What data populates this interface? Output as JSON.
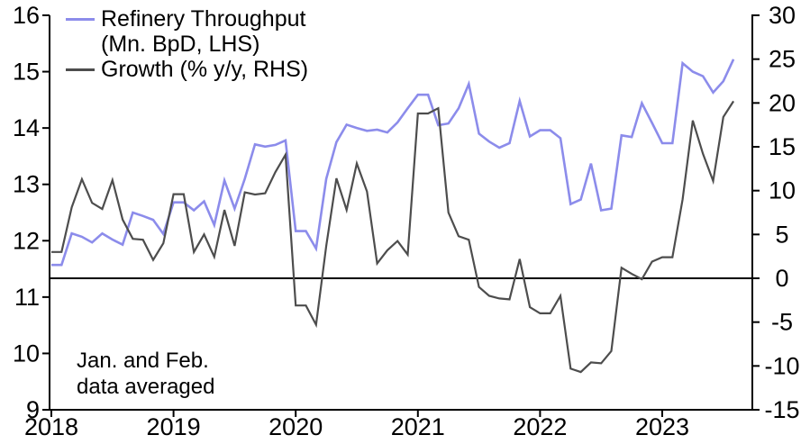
{
  "chart_data": {
    "type": "line",
    "title": "",
    "x_range": "Jan 2018 - Aug 2023, monthly; Jan and Feb of each year plotted as their average (flat segment)",
    "x_tick_labels": [
      "2018",
      "2019",
      "2020",
      "2021",
      "2022",
      "2023"
    ],
    "lhs_axis": {
      "label": "Refinery Throughput (Mn. BpD)",
      "min": 9,
      "max": 16,
      "ticks": [
        9,
        10,
        11,
        12,
        13,
        14,
        15,
        16
      ]
    },
    "rhs_axis": {
      "label": "Growth (% y/y)",
      "min": -15,
      "max": 30,
      "ticks": [
        -15,
        -10,
        -5,
        0,
        5,
        10,
        15,
        20,
        25,
        30
      ]
    },
    "zero_line_rhs": 0,
    "grid": "off",
    "legend_position": "top-left",
    "series": [
      {
        "name": "Refinery Throughput (Mn. BpD, LHS)",
        "axis": "lhs",
        "color": "#8c8ceb",
        "values": [
          11.57,
          11.57,
          12.13,
          12.07,
          11.97,
          12.13,
          12.02,
          11.93,
          12.5,
          12.44,
          12.37,
          12.12,
          12.68,
          12.68,
          12.54,
          12.7,
          12.28,
          13.07,
          12.57,
          13.1,
          13.71,
          13.67,
          13.7,
          13.78,
          12.17,
          12.17,
          11.86,
          13.1,
          13.75,
          14.06,
          14.0,
          13.95,
          13.97,
          13.92,
          14.1,
          14.35,
          14.59,
          14.59,
          14.05,
          14.08,
          14.35,
          14.78,
          13.9,
          13.76,
          13.65,
          13.73,
          14.48,
          13.85,
          13.96,
          13.96,
          13.82,
          12.65,
          12.73,
          13.37,
          12.54,
          12.57,
          13.87,
          13.84,
          14.44,
          14.09,
          13.73,
          13.73,
          15.15,
          15.0,
          14.92,
          14.63,
          14.83,
          15.22
        ]
      },
      {
        "name": "Growth (% y/y, RHS)",
        "axis": "rhs",
        "color": "#4d4d4d",
        "values": [
          3.0,
          3.0,
          8.1,
          11.3,
          8.6,
          7.9,
          11.2,
          6.7,
          4.5,
          4.4,
          2.1,
          4.0,
          9.6,
          9.6,
          3.0,
          5.0,
          2.45,
          7.8,
          3.7,
          9.8,
          9.55,
          9.7,
          12.1,
          14.1,
          -3.1,
          -3.1,
          -5.3,
          3.7,
          11.4,
          7.8,
          13.1,
          9.9,
          1.7,
          3.2,
          4.25,
          2.7,
          18.8,
          18.8,
          19.4,
          7.5,
          4.8,
          4.4,
          -1.0,
          -2.0,
          -2.3,
          -2.4,
          2.2,
          -3.3,
          -4.0,
          -4.0,
          -2.0,
          -10.3,
          -10.7,
          -9.6,
          -9.7,
          -8.3,
          1.2,
          0.5,
          -0.1,
          1.9,
          2.4,
          2.4,
          9.0,
          18.0,
          14.2,
          11.1,
          18.4,
          20.2
        ]
      }
    ]
  },
  "legend": {
    "line1": "Refinery Throughput",
    "line2": "(Mn. BpD, LHS)",
    "line3": "Growth (% y/y, RHS)"
  },
  "annotation": {
    "line1": "Jan. and Feb.",
    "line2": "data averaged"
  }
}
